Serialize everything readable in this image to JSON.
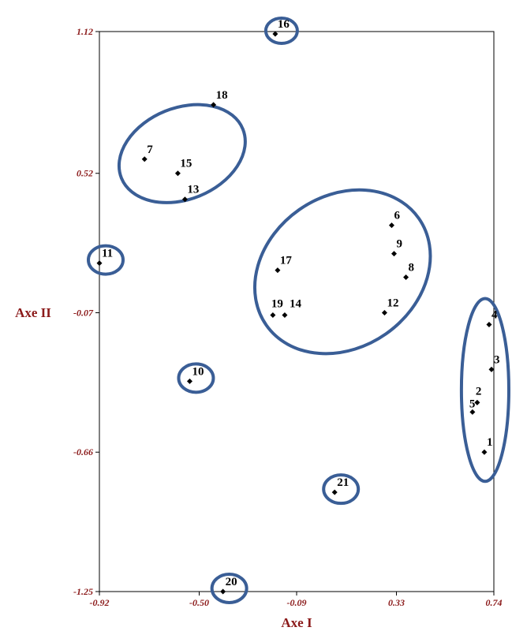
{
  "chart_data": {
    "type": "scatter",
    "title": "",
    "xlabel": "Axe I",
    "ylabel": "Axe II",
    "xlim": [
      -0.92,
      0.74
    ],
    "ylim": [
      -1.25,
      1.12
    ],
    "x_ticks": [
      "-0.92",
      "-0.50",
      "-0.09",
      "0.33",
      "0.74"
    ],
    "y_ticks": [
      "1.12",
      "0.52",
      "-0.07",
      "-0.66",
      "-1.25"
    ],
    "grid": false,
    "points": [
      {
        "label": "1",
        "x": 0.7,
        "y": -0.66
      },
      {
        "label": "2",
        "x": 0.67,
        "y": -0.45
      },
      {
        "label": "5",
        "x": 0.65,
        "y": -0.49
      },
      {
        "label": "3",
        "x": 0.73,
        "y": -0.31
      },
      {
        "label": "4",
        "x": 0.72,
        "y": -0.12
      },
      {
        "label": "6",
        "x": 0.31,
        "y": 0.3
      },
      {
        "label": "9",
        "x": 0.32,
        "y": 0.18
      },
      {
        "label": "8",
        "x": 0.37,
        "y": 0.08
      },
      {
        "label": "12",
        "x": 0.28,
        "y": -0.07
      },
      {
        "label": "17",
        "x": -0.17,
        "y": 0.11
      },
      {
        "label": "19",
        "x": -0.19,
        "y": -0.08
      },
      {
        "label": "14",
        "x": -0.14,
        "y": -0.08
      },
      {
        "label": "10",
        "x": -0.54,
        "y": -0.36
      },
      {
        "label": "11",
        "x": -0.92,
        "y": 0.14
      },
      {
        "label": "7",
        "x": -0.73,
        "y": 0.58
      },
      {
        "label": "15",
        "x": -0.59,
        "y": 0.52
      },
      {
        "label": "13",
        "x": -0.56,
        "y": 0.41
      },
      {
        "label": "18",
        "x": -0.44,
        "y": 0.81
      },
      {
        "label": "16",
        "x": -0.18,
        "y": 1.11
      },
      {
        "label": "21",
        "x": 0.07,
        "y": -0.83
      },
      {
        "label": "20",
        "x": -0.4,
        "y": -1.25
      }
    ],
    "groups": [
      {
        "members": [
          "7",
          "15",
          "13",
          "18"
        ]
      },
      {
        "members": [
          "6",
          "9",
          "8",
          "12",
          "17",
          "19",
          "14"
        ]
      },
      {
        "members": [
          "1",
          "2",
          "5",
          "3",
          "4"
        ]
      },
      {
        "members": [
          "16"
        ]
      },
      {
        "members": [
          "11"
        ]
      },
      {
        "members": [
          "10"
        ]
      },
      {
        "members": [
          "21"
        ]
      },
      {
        "members": [
          "20"
        ]
      }
    ],
    "colors": {
      "axis_text": "#8b1a1a",
      "ellipse": "#3a5e96",
      "marker": "#000000"
    }
  }
}
